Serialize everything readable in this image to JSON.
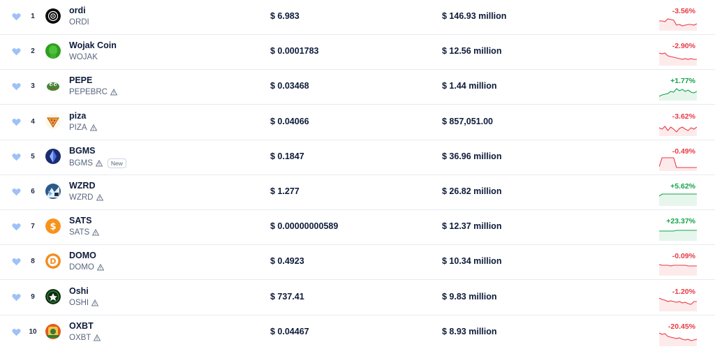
{
  "colors": {
    "negative": "#ea3943",
    "positive": "#16a34a",
    "heart": "#9ec1f7"
  },
  "rows": [
    {
      "rank": "1",
      "name": "ordi",
      "ticker": "ORDI",
      "warn": false,
      "badge": "",
      "price": "$ 6.983",
      "volume": "$ 146.93 million",
      "change": "-3.56%",
      "dir": "neg",
      "logo": "ordi-logo",
      "spark": [
        8,
        8,
        9,
        5,
        6,
        7,
        14,
        13,
        15,
        14,
        13,
        13,
        14,
        12
      ]
    },
    {
      "rank": "2",
      "name": "Wojak Coin",
      "ticker": "WOJAK",
      "warn": false,
      "badge": "",
      "price": "$ 0.0001783",
      "volume": "$ 12.56 million",
      "change": "-2.90%",
      "dir": "neg",
      "logo": "wojak-logo",
      "spark": [
        4,
        5,
        4,
        8,
        9,
        10,
        11,
        12,
        13,
        12,
        13,
        12,
        13,
        13
      ]
    },
    {
      "rank": "3",
      "name": "PEPE",
      "ticker": "PEPEBRC",
      "warn": true,
      "badge": "",
      "price": "$ 0.03468",
      "volume": "$ 1.44 million",
      "change": "+1.77%",
      "dir": "pos",
      "logo": "pepe-logo",
      "spark": [
        16,
        14,
        13,
        12,
        9,
        10,
        5,
        8,
        6,
        9,
        7,
        10,
        11,
        9
      ]
    },
    {
      "rank": "4",
      "name": "piza",
      "ticker": "PIZA",
      "warn": true,
      "badge": "",
      "price": "$ 0.04066",
      "volume": "$ 857,051.00",
      "change": "-3.62%",
      "dir": "neg",
      "logo": "piza-logo",
      "spark": [
        10,
        12,
        8,
        14,
        9,
        12,
        16,
        11,
        9,
        12,
        14,
        10,
        12,
        9
      ]
    },
    {
      "rank": "5",
      "name": "BGMS",
      "ticker": "BGMS",
      "warn": true,
      "badge": "New",
      "price": "$ 0.1847",
      "volume": "$ 36.96 million",
      "change": "-0.49%",
      "dir": "neg",
      "logo": "bgms-logo",
      "spark": [
        16,
        3,
        3,
        3,
        3,
        3,
        17,
        17,
        17,
        17,
        17,
        17,
        17,
        17
      ]
    },
    {
      "rank": "6",
      "name": "WZRD",
      "ticker": "WZRD",
      "warn": true,
      "badge": "",
      "price": "$ 1.277",
      "volume": "$ 26.82 million",
      "change": "+5.62%",
      "dir": "pos",
      "logo": "wzrd-logo",
      "spark": [
        8,
        5,
        5,
        5,
        5,
        5,
        5,
        5,
        5,
        5,
        5,
        5,
        5,
        5
      ]
    },
    {
      "rank": "7",
      "name": "SATS",
      "ticker": "SATS",
      "warn": true,
      "badge": "",
      "price": "$ 0.00000000589",
      "volume": "$ 12.37 million",
      "change": "+23.37%",
      "dir": "pos",
      "logo": "sats-logo",
      "spark": [
        8,
        8,
        8,
        8,
        8,
        8,
        7,
        7,
        7,
        7,
        7,
        7,
        7,
        7
      ]
    },
    {
      "rank": "8",
      "name": "DOMO",
      "ticker": "DOMO",
      "warn": true,
      "badge": "",
      "price": "$ 0.4923",
      "volume": "$ 10.34 million",
      "change": "-0.09%",
      "dir": "neg",
      "logo": "domo-logo",
      "spark": [
        6,
        7,
        7,
        7,
        8,
        7,
        7,
        7,
        7,
        7,
        8,
        8,
        8,
        8
      ]
    },
    {
      "rank": "9",
      "name": "Oshi",
      "ticker": "OSHI",
      "warn": true,
      "badge": "",
      "price": "$ 737.41",
      "volume": "$ 9.83 million",
      "change": "-1.20%",
      "dir": "neg",
      "logo": "oshi-logo",
      "spark": [
        3,
        5,
        6,
        8,
        7,
        8,
        9,
        8,
        10,
        9,
        11,
        12,
        8,
        8
      ]
    },
    {
      "rank": "10",
      "name": "OXBT",
      "ticker": "OXBT",
      "warn": true,
      "badge": "",
      "price": "$ 0.04467",
      "volume": "$ 8.93 million",
      "change": "-20.45%",
      "dir": "neg",
      "logo": "oxbt-logo",
      "spark": [
        3,
        5,
        4,
        8,
        9,
        10,
        11,
        10,
        12,
        13,
        12,
        14,
        13,
        12
      ]
    }
  ]
}
